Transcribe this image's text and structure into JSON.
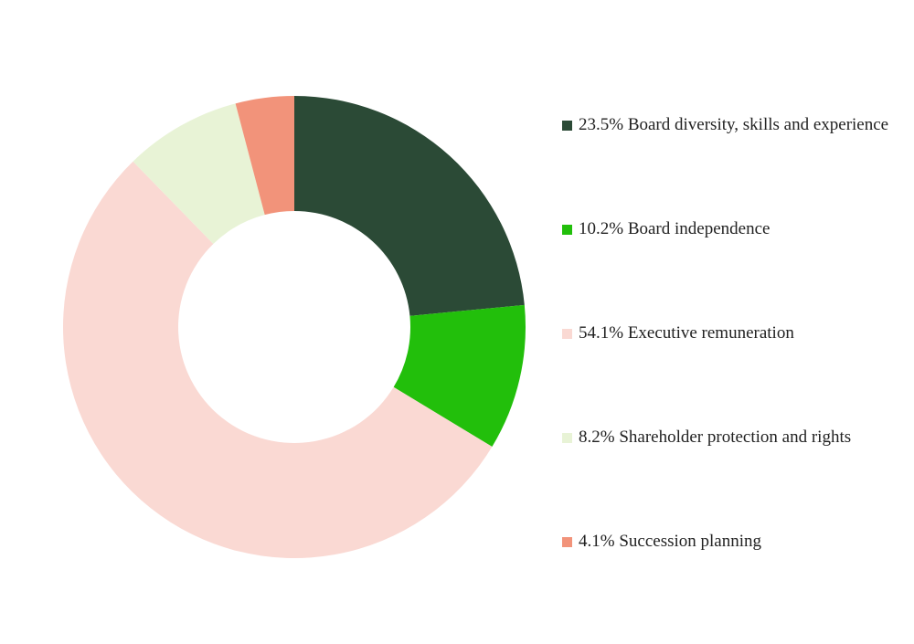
{
  "chart_data": {
    "type": "donut",
    "categories": [
      "Board diversity, skills and experience",
      "Board independence",
      "Executive remuneration",
      "Shareholder protection and rights",
      "Succession planning"
    ],
    "values": [
      23.5,
      10.2,
      54.1,
      8.2,
      4.1
    ],
    "value_labels": [
      "23.5%",
      "10.2%",
      "54.1%",
      "8.2%",
      "4.1%"
    ],
    "colors": [
      "#2b4a36",
      "#22bf0b",
      "#fad9d3",
      "#e8f3d6",
      "#f2937a"
    ],
    "legend": "right"
  }
}
